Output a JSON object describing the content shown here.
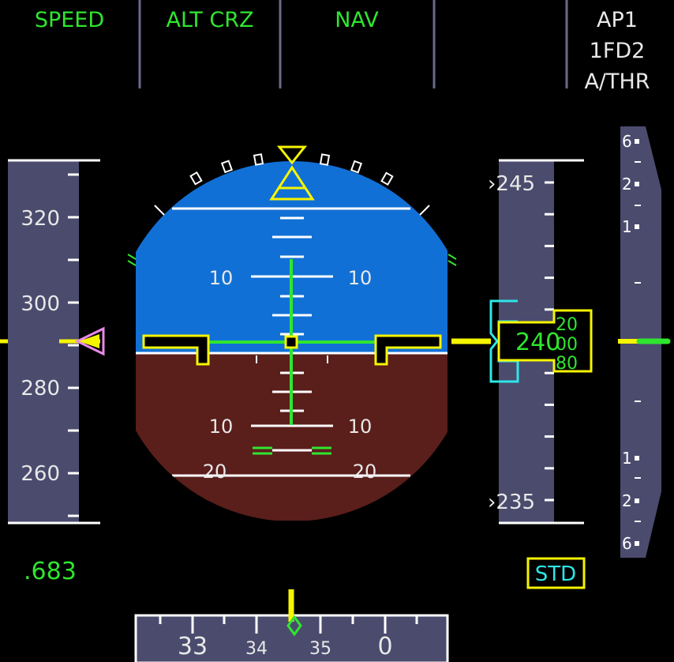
{
  "fma": {
    "speed_mode": "SPEED",
    "vertical_mode": "ALT CRZ",
    "lateral_mode": "NAV",
    "col4": "",
    "ap": "AP1",
    "fd": "1FD2",
    "athr": "A/THR"
  },
  "speed_tape": {
    "labels": [
      "320",
      "300",
      "280",
      "260"
    ],
    "current_kt": 290,
    "mach": ".683"
  },
  "attitude": {
    "pitch_labels_up": [
      "10",
      "10"
    ],
    "pitch_labels_down": [
      "10",
      "10",
      "20",
      "20"
    ],
    "pitch_deg": 1.5,
    "roll_deg": 0
  },
  "altitude_tape": {
    "labels": [
      "245",
      "235"
    ],
    "current": "240",
    "drum": [
      "20",
      "00",
      "80"
    ],
    "baro": "STD"
  },
  "vsi": {
    "labels": [
      "6",
      "2",
      "1",
      "1",
      "2",
      "6"
    ],
    "value_fpm": 0
  },
  "heading": {
    "labels": [
      "33",
      "34",
      "35",
      "0"
    ],
    "current_deg": 347
  },
  "colors": {
    "sky": "#1170d6",
    "ground": "#5a1e1b",
    "tape": "#4b4b6e",
    "fma_green": "#2fe62f",
    "yellow": "#f5f500",
    "cyan": "#2ee6e6",
    "magenta": "#e88ae8"
  }
}
